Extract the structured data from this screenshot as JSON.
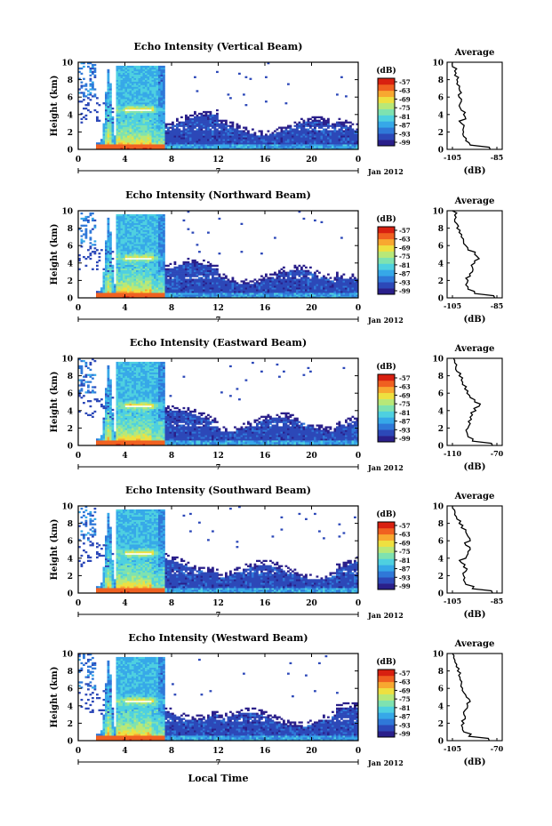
{
  "figure": {
    "x_label": "Local Time",
    "date_label": "Jan 2012",
    "date_marker": "7",
    "avg_title": "Average",
    "avg_xlabel": "(dB)",
    "cb_title": "(dB)",
    "y_label": "Height (km)",
    "colormap": [
      "#2a1f8a",
      "#2c48b8",
      "#2f78d8",
      "#36a8e8",
      "#4ed0e0",
      "#7ee2b0",
      "#b8e878",
      "#eee040",
      "#f8a830",
      "#f06020",
      "#d82010"
    ]
  },
  "chart_data": [
    {
      "type": "heatmap",
      "title": "Echo Intensity (Vertical Beam)",
      "xlabel": "Local Time",
      "ylabel": "Height (km)",
      "x_ticks": [
        "0",
        "4",
        "8",
        "12",
        "16",
        "20",
        "0"
      ],
      "xlim": [
        0,
        24
      ],
      "y_ticks": [
        "0",
        "2",
        "4",
        "6",
        "8",
        "10"
      ],
      "ylim": [
        0,
        10
      ],
      "colorbar": {
        "label": "(dB)",
        "ticks": [
          "-57",
          "-63",
          "-69",
          "-75",
          "-81",
          "-87",
          "-93",
          "-99"
        ],
        "range": [
          -99,
          -57
        ]
      },
      "average_profile": {
        "title": "Average",
        "xlabel": "(dB)",
        "x_ticks": [
          "-105",
          "-85"
        ],
        "xlim": [
          -105,
          -85
        ],
        "heights": [
          0,
          0.5,
          1,
          1.5,
          2,
          2.5,
          3,
          3.5,
          4,
          4.5,
          5,
          5.5,
          6,
          6.5,
          7,
          7.5,
          8,
          8.5,
          9,
          9.5,
          10
        ],
        "values": [
          -88,
          -97,
          -99,
          -100,
          -100,
          -100,
          -101,
          -99,
          -100,
          -101,
          -102,
          -101,
          -102,
          -101,
          -102,
          -103,
          -103,
          -104,
          -104,
          -105,
          -105
        ]
      }
    },
    {
      "type": "heatmap",
      "title": "Echo Intensity (Northward Beam)",
      "xlabel": "Local Time",
      "ylabel": "Height (km)",
      "x_ticks": [
        "0",
        "4",
        "8",
        "12",
        "16",
        "20",
        "0"
      ],
      "xlim": [
        0,
        24
      ],
      "y_ticks": [
        "0",
        "2",
        "4",
        "6",
        "8",
        "10"
      ],
      "ylim": [
        0,
        10
      ],
      "colorbar": {
        "label": "(dB)",
        "ticks": [
          "-57",
          "-63",
          "-69",
          "-75",
          "-81",
          "-87",
          "-93",
          "-99"
        ],
        "range": [
          -99,
          -57
        ]
      },
      "average_profile": {
        "title": "Average",
        "xlabel": "(dB)",
        "x_ticks": [
          "-105",
          "-85"
        ],
        "xlim": [
          -105,
          -85
        ],
        "heights": [
          0,
          0.5,
          1,
          1.5,
          2,
          2.5,
          3,
          3.5,
          4,
          4.5,
          5,
          5.5,
          6,
          6.5,
          7,
          7.5,
          8,
          8.5,
          9,
          9.5,
          10
        ],
        "values": [
          -86,
          -95,
          -98,
          -99,
          -98,
          -97,
          -96,
          -96,
          -95,
          -93,
          -95,
          -98,
          -99,
          -100,
          -101,
          -102,
          -103,
          -103,
          -104,
          -104,
          -105
        ]
      }
    },
    {
      "type": "heatmap",
      "title": "Echo Intensity (Eastward Beam)",
      "xlabel": "Local Time",
      "ylabel": "Height (km)",
      "x_ticks": [
        "0",
        "4",
        "8",
        "12",
        "16",
        "20",
        "0"
      ],
      "xlim": [
        0,
        24
      ],
      "y_ticks": [
        "0",
        "2",
        "4",
        "6",
        "8",
        "10"
      ],
      "ylim": [
        0,
        10
      ],
      "colorbar": {
        "label": "(dB)",
        "ticks": [
          "-57",
          "-63",
          "-69",
          "-75",
          "-81",
          "-87",
          "-93",
          "-99"
        ],
        "range": [
          -99,
          -57
        ]
      },
      "average_profile": {
        "title": "Average",
        "xlabel": "(dB)",
        "x_ticks": [
          "-110",
          "-70"
        ],
        "xlim": [
          -110,
          -70
        ],
        "heights": [
          0,
          0.5,
          1,
          1.5,
          2,
          2.5,
          3,
          3.5,
          4,
          4.5,
          5,
          5.5,
          6,
          6.5,
          7,
          7.5,
          8,
          8.5,
          9,
          9.5,
          10
        ],
        "values": [
          -74,
          -92,
          -96,
          -97,
          -96,
          -94,
          -93,
          -92,
          -89,
          -86,
          -90,
          -94,
          -97,
          -99,
          -101,
          -102,
          -104,
          -106,
          -107,
          -108,
          -109
        ]
      }
    },
    {
      "type": "heatmap",
      "title": "Echo Intensity (Southward Beam)",
      "xlabel": "Local Time",
      "ylabel": "Height (km)",
      "x_ticks": [
        "0",
        "4",
        "8",
        "12",
        "16",
        "20",
        "0"
      ],
      "xlim": [
        0,
        24
      ],
      "y_ticks": [
        "0",
        "2",
        "4",
        "6",
        "8",
        "10"
      ],
      "ylim": [
        0,
        10
      ],
      "colorbar": {
        "label": "(dB)",
        "ticks": [
          "-57",
          "-63",
          "-69",
          "-75",
          "-81",
          "-87",
          "-93",
          "-99"
        ],
        "range": [
          -99,
          -57
        ]
      },
      "average_profile": {
        "title": "Average",
        "xlabel": "(dB)",
        "x_ticks": [
          "-105",
          "-85"
        ],
        "xlim": [
          -105,
          -85
        ],
        "heights": [
          0,
          0.5,
          1,
          1.5,
          2,
          2.5,
          3,
          3.5,
          4,
          4.5,
          5,
          5.5,
          6,
          6.5,
          7,
          7.5,
          8,
          8.5,
          9,
          9.5,
          10
        ],
        "values": [
          -87,
          -96,
          -99,
          -100,
          -100,
          -99,
          -100,
          -101,
          -99,
          -98,
          -97,
          -99,
          -97,
          -98,
          -99,
          -101,
          -102,
          -103,
          -104,
          -104,
          -105
        ]
      }
    },
    {
      "type": "heatmap",
      "title": "Echo Intensity (Westward Beam)",
      "xlabel": "Local Time",
      "ylabel": "Height (km)",
      "x_ticks": [
        "0",
        "4",
        "8",
        "12",
        "16",
        "20",
        "0"
      ],
      "xlim": [
        0,
        24
      ],
      "y_ticks": [
        "0",
        "2",
        "4",
        "6",
        "8",
        "10"
      ],
      "ylim": [
        0,
        10
      ],
      "colorbar": {
        "label": "(dB)",
        "ticks": [
          "-57",
          "-63",
          "-69",
          "-75",
          "-81",
          "-87",
          "-93",
          "-99"
        ],
        "range": [
          -99,
          -57
        ]
      },
      "average_profile": {
        "title": "Average",
        "xlabel": "(dB)",
        "x_ticks": [
          "-105",
          "-70"
        ],
        "xlim": [
          -105,
          -70
        ],
        "heights": [
          0,
          0.5,
          1,
          1.5,
          2,
          2.5,
          3,
          3.5,
          4,
          4.5,
          5,
          5.5,
          6,
          6.5,
          7,
          7.5,
          8,
          8.5,
          9,
          9.5,
          10
        ],
        "values": [
          -76,
          -92,
          -96,
          -97,
          -96,
          -95,
          -96,
          -95,
          -93,
          -91,
          -94,
          -96,
          -97,
          -98,
          -99,
          -100,
          -101,
          -102,
          -103,
          -104,
          -105
        ]
      }
    }
  ]
}
